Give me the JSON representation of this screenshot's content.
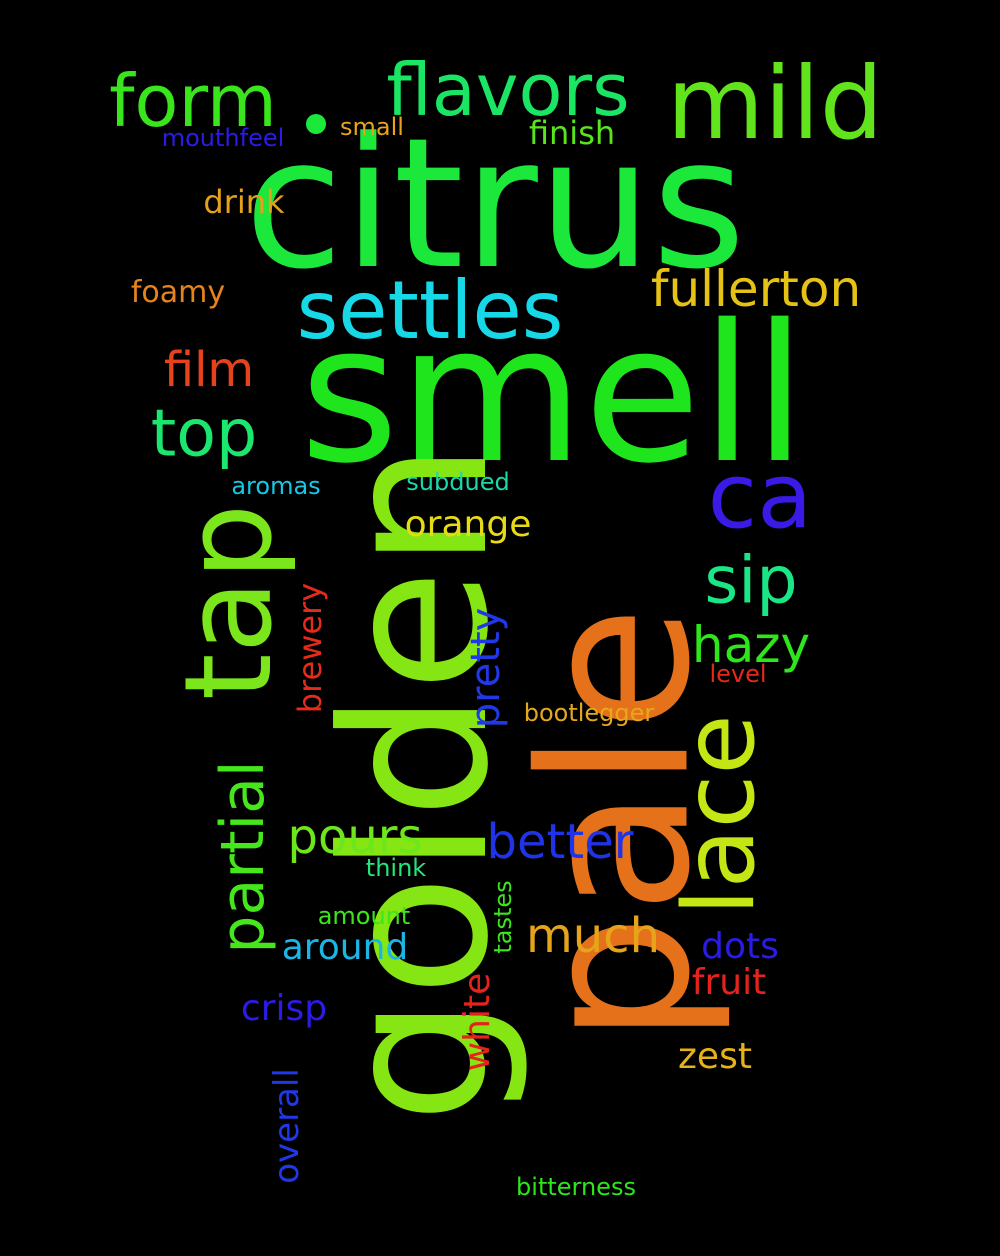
{
  "words": {
    "citrus": "citrus",
    "smell": "smell",
    "golden": "golden",
    "pale": "pale",
    "mild": "mild",
    "flavors": "flavors",
    "form": "form",
    "settles": "settles",
    "fullerton": "fullerton",
    "film": "film",
    "top": "top",
    "tap": "tap",
    "ca": "ca",
    "sip": "sip",
    "hazy": "hazy",
    "lace": "lace",
    "partial": "partial",
    "pours": "pours",
    "better": "better",
    "orange": "orange",
    "pretty": "pretty",
    "brewery": "brewery",
    "much": "much",
    "around": "around",
    "dots": "dots",
    "fruit": "fruit",
    "crisp": "crisp",
    "white": "white",
    "zest": "zest",
    "overall": "overall",
    "tastes": "tastes",
    "drink": "drink",
    "finish": "finish",
    "foamy": "foamy",
    "mouthfeel": "mouthfeel",
    "small": "small",
    "aromas": "aromas",
    "subdued": "subdued",
    "level": "level",
    "bootlegger": "bootlegger",
    "think": "think",
    "amount": "amount",
    "bitterness": "bitterness"
  },
  "background_color": "#000000"
}
